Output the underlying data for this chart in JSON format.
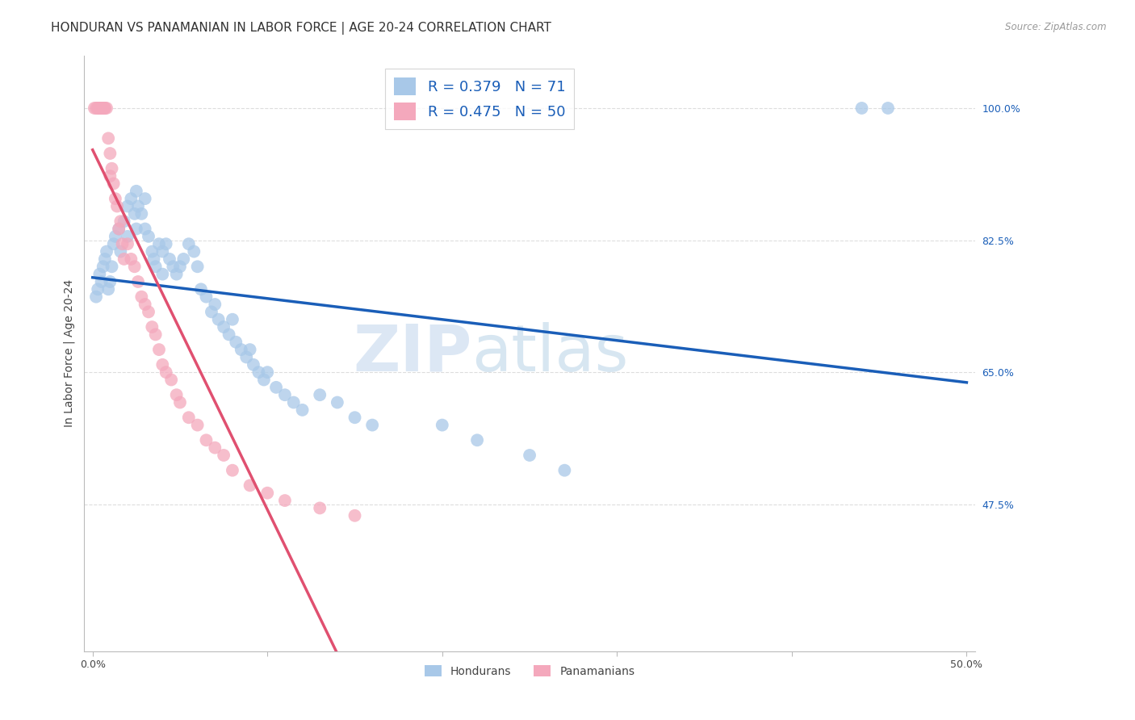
{
  "title": "HONDURAN VS PANAMANIAN IN LABOR FORCE | AGE 20-24 CORRELATION CHART",
  "source": "Source: ZipAtlas.com",
  "ylabel": "In Labor Force | Age 20-24",
  "xlim": [
    0.0,
    0.5
  ],
  "ylim": [
    0.28,
    1.07
  ],
  "ytick_right_vals": [
    1.0,
    0.825,
    0.65,
    0.475
  ],
  "ytick_right_labels": [
    "100.0%",
    "82.5%",
    "65.0%",
    "47.5%"
  ],
  "blue_color": "#a8c8e8",
  "pink_color": "#f4a8bc",
  "blue_R": 0.379,
  "blue_N": 71,
  "pink_R": 0.475,
  "pink_N": 50,
  "blue_line_color": "#1a5eb8",
  "pink_line_color": "#e05070",
  "watermark_zip": "ZIP",
  "watermark_atlas": "atlas",
  "grid_color": "#dddddd",
  "background_color": "#ffffff",
  "honduran_x": [
    0.002,
    0.003,
    0.004,
    0.005,
    0.006,
    0.007,
    0.008,
    0.009,
    0.01,
    0.011,
    0.012,
    0.013,
    0.015,
    0.016,
    0.018,
    0.02,
    0.02,
    0.022,
    0.024,
    0.025,
    0.025,
    0.026,
    0.028,
    0.03,
    0.03,
    0.032,
    0.034,
    0.035,
    0.036,
    0.038,
    0.04,
    0.04,
    0.042,
    0.044,
    0.046,
    0.048,
    0.05,
    0.052,
    0.055,
    0.058,
    0.06,
    0.062,
    0.065,
    0.068,
    0.07,
    0.072,
    0.075,
    0.078,
    0.08,
    0.082,
    0.085,
    0.088,
    0.09,
    0.092,
    0.095,
    0.098,
    0.1,
    0.105,
    0.11,
    0.115,
    0.12,
    0.13,
    0.14,
    0.15,
    0.16,
    0.2,
    0.22,
    0.25,
    0.27,
    0.44,
    0.455
  ],
  "honduran_y": [
    0.75,
    0.76,
    0.78,
    0.77,
    0.79,
    0.8,
    0.81,
    0.76,
    0.77,
    0.79,
    0.82,
    0.83,
    0.84,
    0.81,
    0.85,
    0.87,
    0.83,
    0.88,
    0.86,
    0.89,
    0.84,
    0.87,
    0.86,
    0.88,
    0.84,
    0.83,
    0.81,
    0.8,
    0.79,
    0.82,
    0.81,
    0.78,
    0.82,
    0.8,
    0.79,
    0.78,
    0.79,
    0.8,
    0.82,
    0.81,
    0.79,
    0.76,
    0.75,
    0.73,
    0.74,
    0.72,
    0.71,
    0.7,
    0.72,
    0.69,
    0.68,
    0.67,
    0.68,
    0.66,
    0.65,
    0.64,
    0.65,
    0.63,
    0.62,
    0.61,
    0.6,
    0.62,
    0.61,
    0.59,
    0.58,
    0.58,
    0.56,
    0.54,
    0.52,
    1.0,
    1.0
  ],
  "panamanian_x": [
    0.001,
    0.002,
    0.003,
    0.003,
    0.004,
    0.004,
    0.005,
    0.005,
    0.006,
    0.006,
    0.007,
    0.007,
    0.008,
    0.009,
    0.01,
    0.01,
    0.011,
    0.012,
    0.013,
    0.014,
    0.015,
    0.016,
    0.017,
    0.018,
    0.02,
    0.022,
    0.024,
    0.026,
    0.028,
    0.03,
    0.032,
    0.034,
    0.036,
    0.038,
    0.04,
    0.042,
    0.045,
    0.048,
    0.05,
    0.055,
    0.06,
    0.065,
    0.07,
    0.075,
    0.08,
    0.09,
    0.1,
    0.11,
    0.13,
    0.15
  ],
  "panamanian_y": [
    1.0,
    1.0,
    1.0,
    1.0,
    1.0,
    1.0,
    1.0,
    1.0,
    1.0,
    1.0,
    1.0,
    1.0,
    1.0,
    0.96,
    0.94,
    0.91,
    0.92,
    0.9,
    0.88,
    0.87,
    0.84,
    0.85,
    0.82,
    0.8,
    0.82,
    0.8,
    0.79,
    0.77,
    0.75,
    0.74,
    0.73,
    0.71,
    0.7,
    0.68,
    0.66,
    0.65,
    0.64,
    0.62,
    0.61,
    0.59,
    0.58,
    0.56,
    0.55,
    0.54,
    0.52,
    0.5,
    0.49,
    0.48,
    0.47,
    0.46
  ]
}
